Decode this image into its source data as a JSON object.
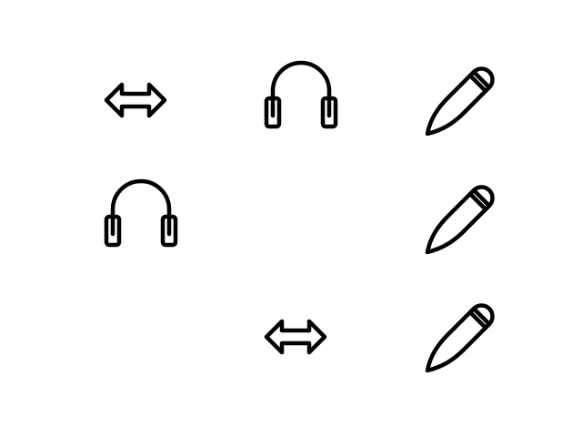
{
  "icon_color": "#000000",
  "background_color": "#ffffff",
  "grid": {
    "rows": [
      [
        "arrows-horizontal-icon",
        "headphones-icon",
        "pencil-icon"
      ],
      [
        "headphones-icon",
        "",
        "pencil-icon"
      ],
      [
        "",
        "arrows-horizontal-icon",
        "pencil-icon"
      ]
    ]
  }
}
